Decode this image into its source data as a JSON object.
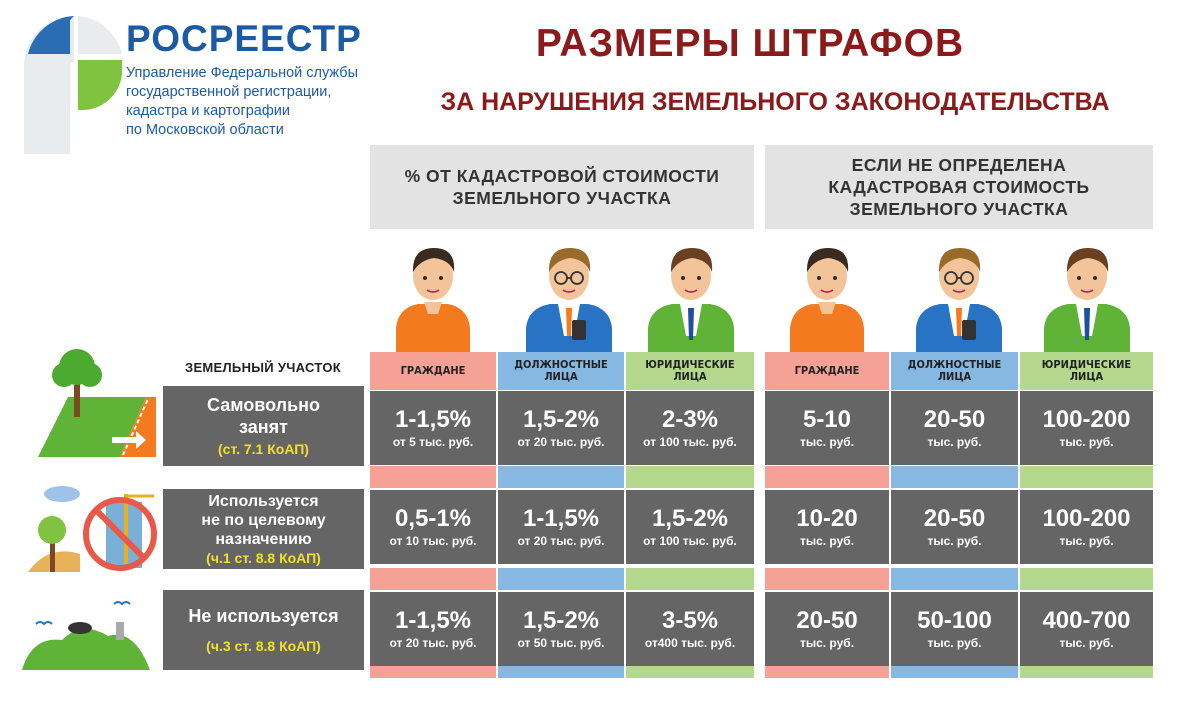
{
  "header": {
    "org_name": "РОСРЕЕСТР",
    "org_desc": [
      "Управление Федеральной службы",
      "государственной регистрации,",
      "кадастра и картографии",
      "по Московской области"
    ],
    "title": "РАЗМЕРЫ ШТРАФОВ",
    "subtitle": "ЗА НАРУШЕНИЯ ЗЕМЕЛЬНОГО ЗАКОНОДАТЕЛЬСТВА"
  },
  "groups": {
    "percent": [
      "% ОТ КАДАСТРОВОЙ СТОИМОСТИ",
      "ЗЕМЕЛЬНОГО УЧАСТКА"
    ],
    "fixed": [
      "ЕСЛИ НЕ ОПРЕДЕЛЕНА",
      "КАДАСТРОВАЯ СТОИМОСТЬ",
      "ЗЕМЕЛЬНОГО УЧАСТКА"
    ]
  },
  "land_label": "ЗЕМЕЛЬНЫЙ УЧАСТОК",
  "columns": [
    {
      "label": [
        "ГРАЖДАНЕ"
      ],
      "color": "#f5a196"
    },
    {
      "label": [
        "ДОЛЖНОСТНЫЕ",
        "ЛИЦА"
      ],
      "color": "#86b8e2"
    },
    {
      "label": [
        "ЮРИДИЧЕСКИЕ",
        "ЛИЦА"
      ],
      "color": "#b4d98e"
    },
    {
      "label": [
        "ГРАЖДАНЕ"
      ],
      "color": "#f5a196"
    },
    {
      "label": [
        "ДОЛЖНОСТНЫЕ",
        "ЛИЦА"
      ],
      "color": "#86b8e2"
    },
    {
      "label": [
        "ЮРИДИЧЕСКИЕ",
        "ЛИЦА"
      ],
      "color": "#b4d98e"
    }
  ],
  "rows": [
    {
      "label": [
        "Самовольно",
        "занят"
      ],
      "law": "(ст. 7.1 КоАП)",
      "icon": "land-seizure-icon",
      "cells": [
        {
          "main": "1-1,5%",
          "sub": "от 5 тыс. руб."
        },
        {
          "main": "1,5-2%",
          "sub": "от 20 тыс. руб."
        },
        {
          "main": "2-3%",
          "sub": "от 100 тыс. руб."
        },
        {
          "main": "5-10",
          "sub": "тыс. руб."
        },
        {
          "main": "20-50",
          "sub": "тыс. руб."
        },
        {
          "main": "100-200",
          "sub": "тыс. руб."
        }
      ]
    },
    {
      "label": [
        "Используется",
        "не по целевому",
        "назначению"
      ],
      "law": "(ч.1 ст. 8.8 КоАП)",
      "icon": "misuse-prohibited-icon",
      "cells": [
        {
          "main": "0,5-1%",
          "sub": "от 10 тыс. руб."
        },
        {
          "main": "1-1,5%",
          "sub": "от 20 тыс. руб."
        },
        {
          "main": "1,5-2%",
          "sub": "от 100 тыс. руб."
        },
        {
          "main": "10-20",
          "sub": "тыс. руб."
        },
        {
          "main": "20-50",
          "sub": "тыс. руб."
        },
        {
          "main": "100-200",
          "sub": "тыс. руб."
        }
      ]
    },
    {
      "label": [
        "Не используется"
      ],
      "law": "(ч.3 ст. 8.8 КоАП)",
      "icon": "abandoned-land-icon",
      "cells": [
        {
          "main": "1-1,5%",
          "sub": "от 20 тыс. руб."
        },
        {
          "main": "1,5-2%",
          "sub": "от 50 тыс. руб."
        },
        {
          "main": "3-5%",
          "sub": "от400 тыс. руб."
        },
        {
          "main": "20-50",
          "sub": "тыс. руб."
        },
        {
          "main": "50-100",
          "sub": "тыс. руб."
        },
        {
          "main": "400-700",
          "sub": "тыс. руб."
        }
      ]
    }
  ]
}
